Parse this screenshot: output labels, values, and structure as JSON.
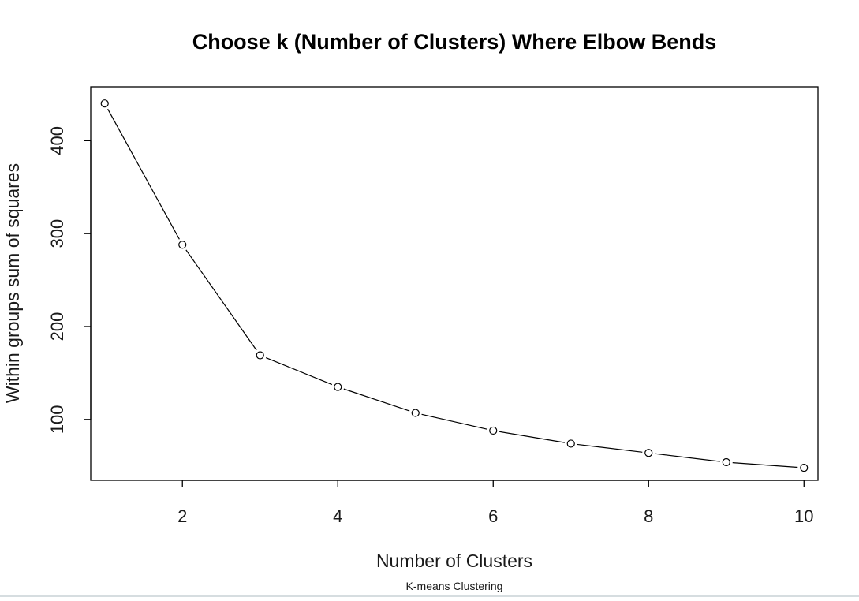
{
  "chart_data": {
    "type": "line",
    "title": "Choose k (Number of Clusters) Where Elbow Bends",
    "xlabel": "Number of Clusters",
    "ylabel": "Within groups sum of squares",
    "subtitle": "K-means Clustering",
    "x": [
      1,
      2,
      3,
      4,
      5,
      6,
      7,
      8,
      9,
      10
    ],
    "series": [
      {
        "values": [
          440,
          288,
          169,
          135,
          107,
          88,
          74,
          64,
          54,
          48
        ]
      }
    ],
    "xlim": [
      0.82,
      10.18
    ],
    "ylim": [
      34.5,
      458
    ],
    "xticks": [
      2,
      4,
      6,
      8,
      10
    ],
    "yticks": [
      100,
      200,
      300,
      400
    ],
    "grid": false,
    "line_color": "#000000",
    "marker": "open-circle"
  }
}
